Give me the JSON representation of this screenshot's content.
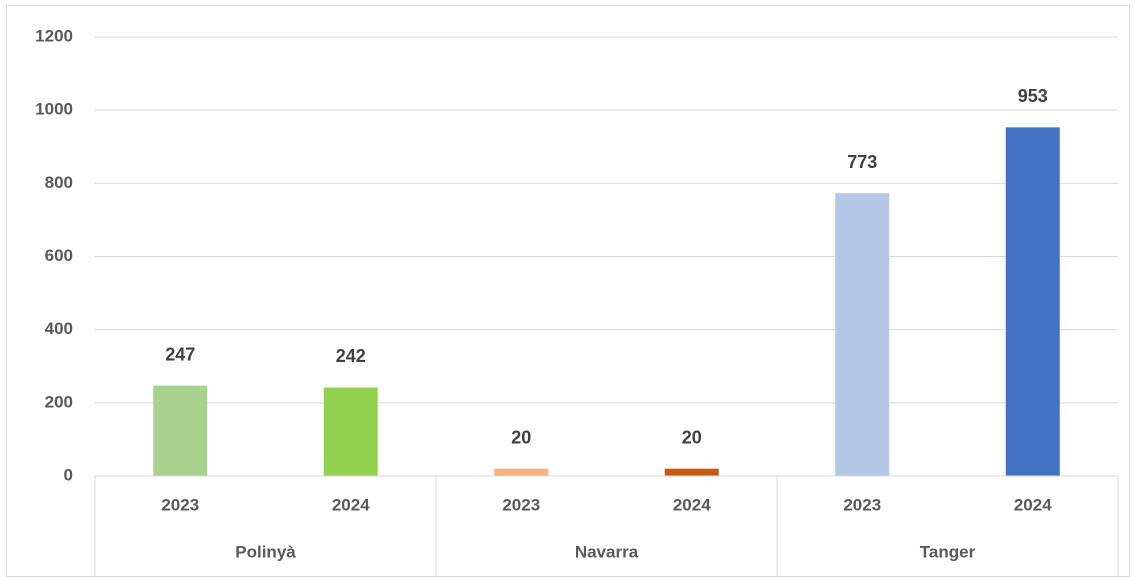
{
  "chart_data": {
    "type": "bar",
    "groups": [
      "Polinyà",
      "Navarra",
      "Tanger"
    ],
    "categories": [
      "2023",
      "2024",
      "2023",
      "2024",
      "2023",
      "2024"
    ],
    "values": [
      247,
      242,
      20,
      20,
      773,
      953
    ],
    "colors": [
      "#a9d18e",
      "#92d050",
      "#f4b183",
      "#c55a11",
      "#b4c7e7",
      "#4472c4"
    ],
    "ylim": [
      0,
      1200
    ],
    "yticks": [
      0,
      200,
      400,
      600,
      800,
      1000,
      1200
    ],
    "grid": true
  }
}
